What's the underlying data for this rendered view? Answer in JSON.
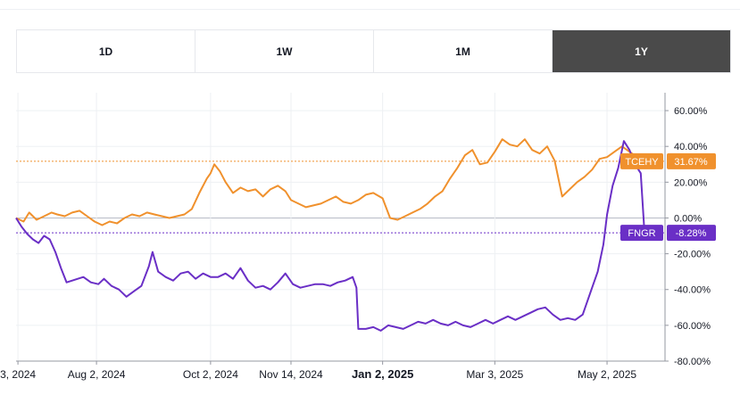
{
  "tabs": [
    {
      "label": "1D",
      "active": false
    },
    {
      "label": "1W",
      "active": false
    },
    {
      "label": "1M",
      "active": false
    },
    {
      "label": "1Y",
      "active": true
    }
  ],
  "colors": {
    "tcehy": "#f0912d",
    "fngr": "#6a2fc6",
    "grid": "#eef0f3",
    "axis": "#6a6d78"
  },
  "chart_data": {
    "type": "line",
    "ylim": [
      -80,
      70
    ],
    "yticks": [
      60,
      40,
      20,
      0,
      -20,
      -40,
      -60,
      -80
    ],
    "ytick_labels": [
      "60.00%",
      "40.00%",
      "20.00%",
      "0.00%",
      "-20.00%",
      "-40.00%",
      "-60.00%",
      "-80.00%"
    ],
    "x_range": [
      "2024-06-20",
      "2025-06-02"
    ],
    "xticks": [
      {
        "date": "2024-06-21",
        "label": "3, 2024",
        "bold": false
      },
      {
        "date": "2024-08-02",
        "label": "Aug 2, 2024",
        "bold": false
      },
      {
        "date": "2024-10-02",
        "label": "Oct 2, 2024",
        "bold": false
      },
      {
        "date": "2024-11-14",
        "label": "Nov 14, 2024",
        "bold": false
      },
      {
        "date": "2025-01-02",
        "label": "Jan 2, 2025",
        "bold": true
      },
      {
        "date": "2025-03-03",
        "label": "Mar 3, 2025",
        "bold": false
      },
      {
        "date": "2025-05-02",
        "label": "May 2, 2025",
        "bold": false
      }
    ],
    "series": [
      {
        "name": "TCEHY",
        "last_label": "31.67%",
        "color": "#f0912d",
        "points": [
          [
            "2024-06-20",
            0
          ],
          [
            "2024-06-24",
            -2
          ],
          [
            "2024-06-27",
            3
          ],
          [
            "2024-07-01",
            -1
          ],
          [
            "2024-07-05",
            1
          ],
          [
            "2024-07-09",
            3
          ],
          [
            "2024-07-12",
            2
          ],
          [
            "2024-07-16",
            1
          ],
          [
            "2024-07-20",
            3
          ],
          [
            "2024-07-24",
            4
          ],
          [
            "2024-07-28",
            1
          ],
          [
            "2024-08-01",
            -2
          ],
          [
            "2024-08-05",
            -4
          ],
          [
            "2024-08-09",
            -2
          ],
          [
            "2024-08-13",
            -3
          ],
          [
            "2024-08-17",
            0
          ],
          [
            "2024-08-21",
            2
          ],
          [
            "2024-08-25",
            1
          ],
          [
            "2024-08-29",
            3
          ],
          [
            "2024-09-02",
            2
          ],
          [
            "2024-09-06",
            1
          ],
          [
            "2024-09-10",
            0
          ],
          [
            "2024-09-14",
            1
          ],
          [
            "2024-09-18",
            2
          ],
          [
            "2024-09-22",
            5
          ],
          [
            "2024-09-26",
            14
          ],
          [
            "2024-09-30",
            22
          ],
          [
            "2024-10-02",
            25
          ],
          [
            "2024-10-04",
            30
          ],
          [
            "2024-10-07",
            26
          ],
          [
            "2024-10-10",
            20
          ],
          [
            "2024-10-14",
            14
          ],
          [
            "2024-10-18",
            17
          ],
          [
            "2024-10-22",
            15
          ],
          [
            "2024-10-26",
            16
          ],
          [
            "2024-10-30",
            12
          ],
          [
            "2024-11-03",
            16
          ],
          [
            "2024-11-07",
            18
          ],
          [
            "2024-11-11",
            15
          ],
          [
            "2024-11-14",
            10
          ],
          [
            "2024-11-18",
            8
          ],
          [
            "2024-11-22",
            6
          ],
          [
            "2024-11-26",
            7
          ],
          [
            "2024-11-30",
            8
          ],
          [
            "2024-12-04",
            10
          ],
          [
            "2024-12-08",
            12
          ],
          [
            "2024-12-12",
            9
          ],
          [
            "2024-12-16",
            8
          ],
          [
            "2024-12-20",
            10
          ],
          [
            "2024-12-24",
            13
          ],
          [
            "2024-12-28",
            14
          ],
          [
            "2025-01-02",
            11
          ],
          [
            "2025-01-06",
            0
          ],
          [
            "2025-01-10",
            -1
          ],
          [
            "2025-01-14",
            1
          ],
          [
            "2025-01-18",
            3
          ],
          [
            "2025-01-22",
            5
          ],
          [
            "2025-01-26",
            8
          ],
          [
            "2025-01-30",
            12
          ],
          [
            "2025-02-03",
            15
          ],
          [
            "2025-02-07",
            22
          ],
          [
            "2025-02-11",
            28
          ],
          [
            "2025-02-15",
            35
          ],
          [
            "2025-02-19",
            38
          ],
          [
            "2025-02-23",
            30
          ],
          [
            "2025-02-27",
            31
          ],
          [
            "2025-03-03",
            37
          ],
          [
            "2025-03-07",
            44
          ],
          [
            "2025-03-11",
            41
          ],
          [
            "2025-03-15",
            40
          ],
          [
            "2025-03-19",
            44
          ],
          [
            "2025-03-23",
            38
          ],
          [
            "2025-03-27",
            36
          ],
          [
            "2025-03-31",
            40
          ],
          [
            "2025-04-04",
            32
          ],
          [
            "2025-04-08",
            12
          ],
          [
            "2025-04-12",
            16
          ],
          [
            "2025-04-16",
            20
          ],
          [
            "2025-04-20",
            23
          ],
          [
            "2025-04-24",
            27
          ],
          [
            "2025-04-28",
            33
          ],
          [
            "2025-05-02",
            34
          ],
          [
            "2025-05-06",
            37
          ],
          [
            "2025-05-10",
            40
          ],
          [
            "2025-05-14",
            37
          ],
          [
            "2025-05-18",
            34
          ],
          [
            "2025-05-22",
            31.67
          ]
        ]
      },
      {
        "name": "FNGR",
        "last_label": "-8.28%",
        "color": "#6a2fc6",
        "points": [
          [
            "2024-06-20",
            0
          ],
          [
            "2024-06-23",
            -5
          ],
          [
            "2024-06-26",
            -9
          ],
          [
            "2024-06-29",
            -12
          ],
          [
            "2024-07-02",
            -14
          ],
          [
            "2024-07-05",
            -10
          ],
          [
            "2024-07-08",
            -12
          ],
          [
            "2024-07-11",
            -19
          ],
          [
            "2024-07-14",
            -28
          ],
          [
            "2024-07-17",
            -36
          ],
          [
            "2024-07-20",
            -35
          ],
          [
            "2024-07-23",
            -34
          ],
          [
            "2024-07-26",
            -33
          ],
          [
            "2024-07-30",
            -36
          ],
          [
            "2024-08-03",
            -37
          ],
          [
            "2024-08-06",
            -34
          ],
          [
            "2024-08-10",
            -38
          ],
          [
            "2024-08-14",
            -40
          ],
          [
            "2024-08-18",
            -44
          ],
          [
            "2024-08-22",
            -41
          ],
          [
            "2024-08-26",
            -38
          ],
          [
            "2024-08-30",
            -27
          ],
          [
            "2024-09-01",
            -19
          ],
          [
            "2024-09-04",
            -30
          ],
          [
            "2024-09-08",
            -33
          ],
          [
            "2024-09-12",
            -35
          ],
          [
            "2024-09-16",
            -31
          ],
          [
            "2024-09-20",
            -30
          ],
          [
            "2024-09-24",
            -34
          ],
          [
            "2024-09-28",
            -31
          ],
          [
            "2024-10-02",
            -33
          ],
          [
            "2024-10-06",
            -33
          ],
          [
            "2024-10-10",
            -31
          ],
          [
            "2024-10-14",
            -34
          ],
          [
            "2024-10-18",
            -28
          ],
          [
            "2024-10-22",
            -35
          ],
          [
            "2024-10-26",
            -39
          ],
          [
            "2024-10-30",
            -38
          ],
          [
            "2024-11-03",
            -40
          ],
          [
            "2024-11-07",
            -36
          ],
          [
            "2024-11-11",
            -31
          ],
          [
            "2024-11-15",
            -37
          ],
          [
            "2024-11-19",
            -39
          ],
          [
            "2024-11-23",
            -38
          ],
          [
            "2024-11-27",
            -37
          ],
          [
            "2024-12-01",
            -37
          ],
          [
            "2024-12-05",
            -38
          ],
          [
            "2024-12-09",
            -36
          ],
          [
            "2024-12-13",
            -35
          ],
          [
            "2024-12-17",
            -33
          ],
          [
            "2024-12-19",
            -39
          ],
          [
            "2024-12-20",
            -62
          ],
          [
            "2024-12-24",
            -62
          ],
          [
            "2024-12-28",
            -61
          ],
          [
            "2025-01-01",
            -63
          ],
          [
            "2025-01-05",
            -60
          ],
          [
            "2025-01-09",
            -61
          ],
          [
            "2025-01-13",
            -62
          ],
          [
            "2025-01-17",
            -60
          ],
          [
            "2025-01-21",
            -58
          ],
          [
            "2025-01-25",
            -59
          ],
          [
            "2025-01-29",
            -57
          ],
          [
            "2025-02-02",
            -59
          ],
          [
            "2025-02-06",
            -60
          ],
          [
            "2025-02-10",
            -58
          ],
          [
            "2025-02-14",
            -60
          ],
          [
            "2025-02-18",
            -61
          ],
          [
            "2025-02-22",
            -59
          ],
          [
            "2025-02-26",
            -57
          ],
          [
            "2025-03-02",
            -59
          ],
          [
            "2025-03-06",
            -57
          ],
          [
            "2025-03-10",
            -55
          ],
          [
            "2025-03-14",
            -57
          ],
          [
            "2025-03-18",
            -55
          ],
          [
            "2025-03-22",
            -53
          ],
          [
            "2025-03-26",
            -51
          ],
          [
            "2025-03-30",
            -50
          ],
          [
            "2025-04-03",
            -54
          ],
          [
            "2025-04-07",
            -57
          ],
          [
            "2025-04-11",
            -56
          ],
          [
            "2025-04-15",
            -57
          ],
          [
            "2025-04-19",
            -54
          ],
          [
            "2025-04-23",
            -42
          ],
          [
            "2025-04-27",
            -30
          ],
          [
            "2025-04-30",
            -15
          ],
          [
            "2025-05-02",
            2
          ],
          [
            "2025-05-05",
            18
          ],
          [
            "2025-05-08",
            28
          ],
          [
            "2025-05-11",
            43
          ],
          [
            "2025-05-14",
            38
          ],
          [
            "2025-05-17",
            30
          ],
          [
            "2025-05-20",
            25
          ],
          [
            "2025-05-22",
            -8.28
          ]
        ]
      }
    ]
  }
}
